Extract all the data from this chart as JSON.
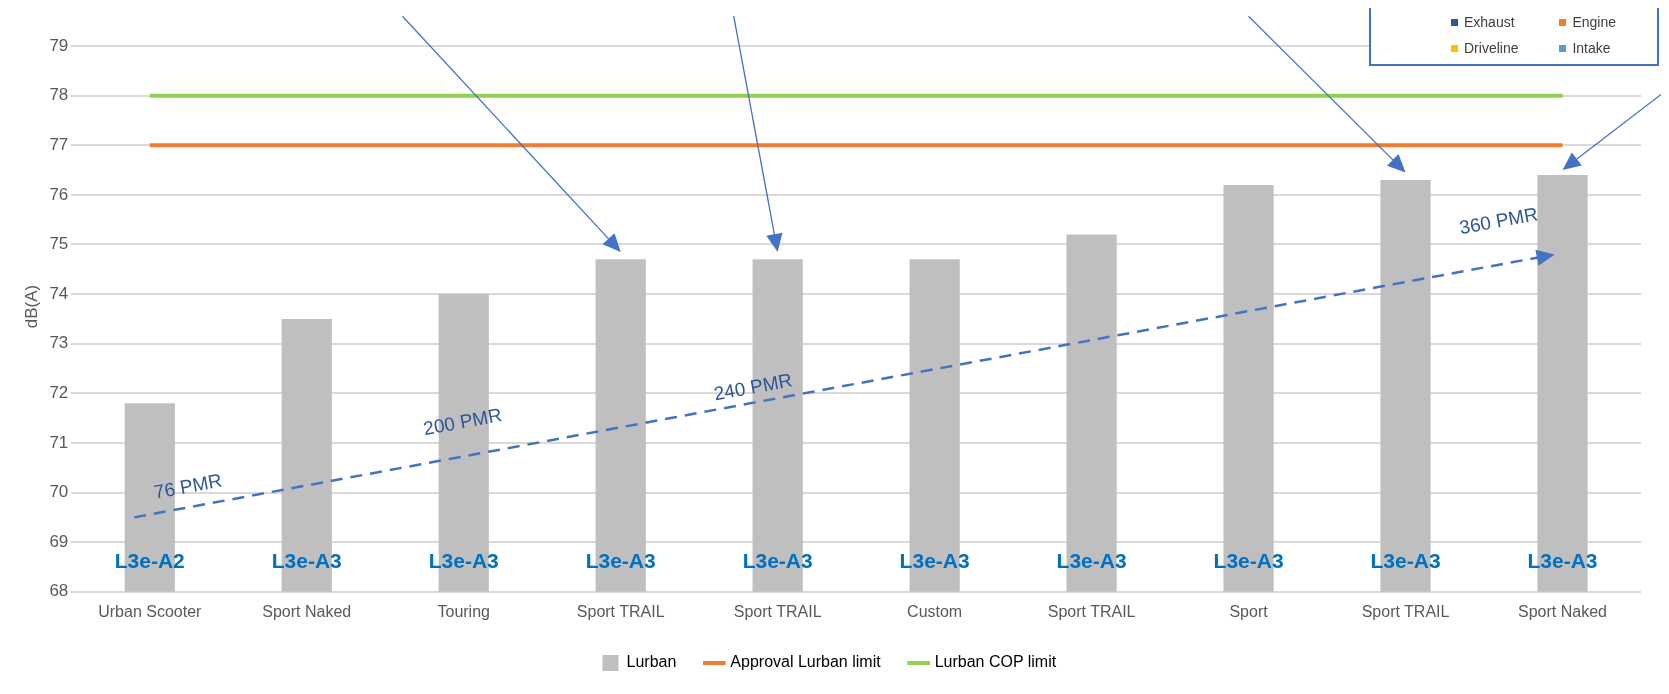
{
  "chart_data": {
    "type": "bar",
    "ylabel": "dB(A)",
    "categories": [
      "Urban Scooter",
      "Sport Naked",
      "Touring",
      "Sport TRAIL",
      "Sport TRAIL",
      "Custom",
      "Sport TRAIL",
      "Sport",
      "Sport TRAIL",
      "Sport Naked"
    ],
    "series": [
      {
        "name": "Lurban",
        "color": "#bfbfbf",
        "values": [
          71.8,
          73.5,
          74.0,
          74.7,
          74.7,
          74.7,
          75.2,
          76.2,
          76.3,
          76.4
        ],
        "value_labels": [
          "L3e-A2",
          "L3e-A3",
          "L3e-A3",
          "L3e-A3",
          "L3e-A3",
          "L3e-A3",
          "L3e-A3",
          "L3e-A3",
          "L3e-A3",
          "L3e-A3"
        ]
      }
    ],
    "ref_lines": [
      {
        "axis": "y",
        "value": 77,
        "label": "Approval Lurban limit",
        "color": "#ed7d31"
      },
      {
        "axis": "y",
        "value": 78,
        "label": "Lurban COP limit",
        "color": "#92d050"
      }
    ],
    "ylim": [
      68,
      79.5
    ],
    "yticks": [
      68,
      69,
      70,
      71,
      72,
      73,
      74,
      75,
      76,
      77,
      78,
      79
    ],
    "grid": "y",
    "legend": "bottom",
    "annotations": [
      "76 PMR",
      "200 PMR",
      "240 PMR",
      "360 PMR",
      "Exhaust",
      "Engine",
      "Driveline",
      "Intake"
    ]
  }
}
